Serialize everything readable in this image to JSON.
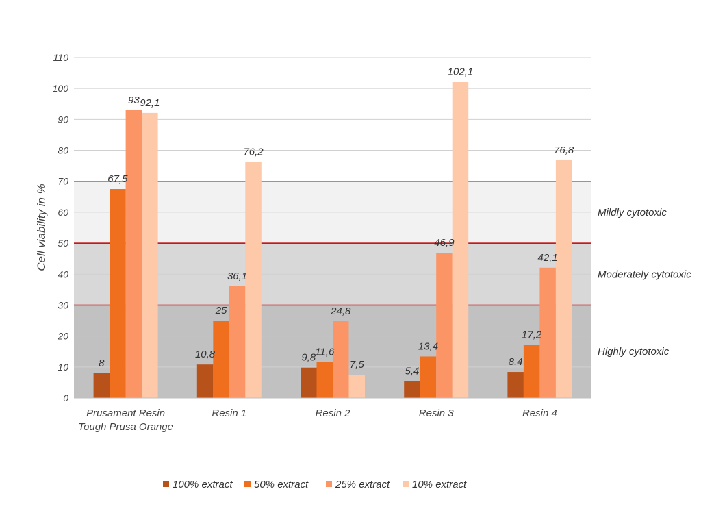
{
  "chart_data": {
    "type": "bar",
    "ylabel": "Cell viability in %",
    "xlabel": "",
    "ylim": [
      0,
      110
    ],
    "yticks": [
      0,
      10,
      20,
      30,
      40,
      50,
      60,
      70,
      80,
      90,
      100,
      110
    ],
    "categories": [
      [
        "Prusament Resin",
        "Tough Prusa Orange"
      ],
      [
        "Resin 1"
      ],
      [
        "Resin 2"
      ],
      [
        "Resin 3"
      ],
      [
        "Resin 4"
      ]
    ],
    "series": [
      {
        "name": "100% extract",
        "color": "#b7521b",
        "values": [
          8,
          10.8,
          9.8,
          5.4,
          8.4
        ],
        "labels": [
          "8",
          "10,8",
          "9,8",
          "5,4",
          "8,4"
        ]
      },
      {
        "name": "50% extract",
        "color": "#ef6f1f",
        "values": [
          67.5,
          25,
          11.6,
          13.4,
          17.2
        ],
        "labels": [
          "67,5",
          "25",
          "11,6",
          "13,4",
          "17,2"
        ]
      },
      {
        "name": "25% extract",
        "color": "#fb9566",
        "values": [
          93,
          36.1,
          24.8,
          46.9,
          42.1
        ],
        "labels": [
          "93",
          "36,1",
          "24,8",
          "46,9",
          "42,1"
        ]
      },
      {
        "name": "10% extract",
        "color": "#fdc9a8",
        "values": [
          92.1,
          76.2,
          7.5,
          102.1,
          76.8
        ],
        "labels": [
          "92,1",
          "76,2",
          "7,5",
          "102,1",
          "76,8"
        ]
      }
    ],
    "zones": [
      {
        "label": "Highly cytotoxic",
        "from": 0,
        "to": 30,
        "color": "#c1c1c1"
      },
      {
        "label": "Moderately cytotoxic",
        "from": 30,
        "to": 50,
        "color": "#d8d8d8"
      },
      {
        "label": "Mildly cytotoxic",
        "from": 50,
        "to": 70,
        "color": "#f2f2f2"
      }
    ],
    "threshold_lines": [
      30,
      50,
      70
    ],
    "threshold_color": "#c00000",
    "grid": true,
    "legend_position": "bottom"
  }
}
